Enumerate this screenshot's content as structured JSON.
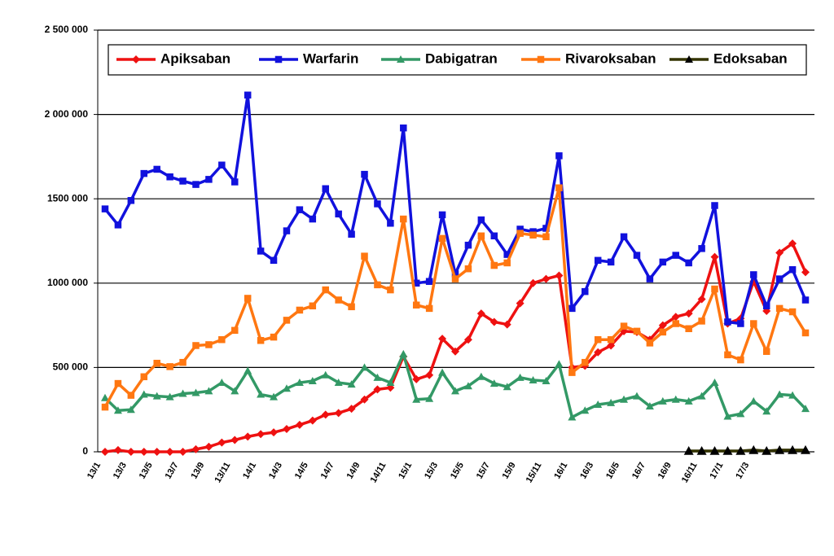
{
  "chart_data": {
    "type": "line",
    "categories": [
      "13/1",
      null,
      "13/3",
      null,
      "13/5",
      null,
      "13/7",
      null,
      "13/9",
      null,
      "13/11",
      null,
      "14/1",
      null,
      "14/3",
      null,
      "14/5",
      null,
      "14/7",
      null,
      "14/9",
      null,
      "14/11",
      null,
      "15/1",
      null,
      "15/3",
      null,
      "15/5",
      null,
      "15/7",
      null,
      "15/9",
      null,
      "15/11",
      null,
      "16/1",
      null,
      "16/3",
      null,
      "16/5",
      null,
      "16/7",
      null,
      "16/9",
      null,
      "16/11",
      null,
      "17/1",
      null,
      "17/3",
      null,
      null,
      null,
      null
    ],
    "series": [
      {
        "name": "Apiksaban",
        "color": "#ee1111",
        "marker": "diamond",
        "values": [
          0,
          10000,
          0,
          0,
          0,
          0,
          0,
          15000,
          30000,
          55000,
          70000,
          90000,
          105000,
          115000,
          135000,
          160000,
          185000,
          220000,
          230000,
          255000,
          310000,
          370000,
          380000,
          565000,
          430000,
          455000,
          670000,
          595000,
          665000,
          820000,
          770000,
          755000,
          880000,
          1000000,
          1025000,
          1045000,
          500000,
          510000,
          590000,
          630000,
          715000,
          710000,
          665000,
          750000,
          800000,
          820000,
          905000,
          1155000,
          760000,
          790000,
          1010000,
          835000,
          1180000,
          1235000,
          1065000
        ]
      },
      {
        "name": "Warfarin",
        "color": "#1111dd",
        "marker": "square",
        "values": [
          1440000,
          1345000,
          1490000,
          1650000,
          1675000,
          1630000,
          1605000,
          1585000,
          1615000,
          1700000,
          1600000,
          2115000,
          1190000,
          1135000,
          1310000,
          1435000,
          1380000,
          1560000,
          1410000,
          1290000,
          1645000,
          1470000,
          1355000,
          1920000,
          1000000,
          1010000,
          1405000,
          1055000,
          1225000,
          1375000,
          1280000,
          1170000,
          1320000,
          1305000,
          1325000,
          1755000,
          850000,
          950000,
          1135000,
          1125000,
          1275000,
          1165000,
          1025000,
          1125000,
          1165000,
          1120000,
          1205000,
          1460000,
          770000,
          760000,
          1050000,
          865000,
          1025000,
          1080000,
          900000
        ]
      },
      {
        "name": "Dabigatran",
        "color": "#339966",
        "marker": "triangle",
        "values": [
          320000,
          245000,
          250000,
          340000,
          330000,
          325000,
          345000,
          350000,
          360000,
          410000,
          360000,
          480000,
          340000,
          325000,
          375000,
          410000,
          420000,
          455000,
          410000,
          400000,
          500000,
          440000,
          410000,
          580000,
          310000,
          315000,
          470000,
          360000,
          390000,
          445000,
          405000,
          385000,
          440000,
          425000,
          420000,
          520000,
          205000,
          245000,
          280000,
          290000,
          310000,
          330000,
          270000,
          300000,
          310000,
          300000,
          330000,
          410000,
          210000,
          225000,
          300000,
          240000,
          340000,
          335000,
          255000
        ]
      },
      {
        "name": "Rivaroksaban",
        "color": "#ff7711",
        "marker": "square",
        "values": [
          265000,
          405000,
          335000,
          445000,
          525000,
          505000,
          530000,
          630000,
          635000,
          665000,
          720000,
          910000,
          660000,
          680000,
          780000,
          840000,
          865000,
          960000,
          900000,
          860000,
          1160000,
          990000,
          960000,
          1380000,
          870000,
          850000,
          1265000,
          1025000,
          1085000,
          1280000,
          1105000,
          1120000,
          1295000,
          1285000,
          1275000,
          1565000,
          470000,
          530000,
          665000,
          665000,
          745000,
          715000,
          645000,
          710000,
          760000,
          730000,
          775000,
          965000,
          575000,
          545000,
          760000,
          595000,
          850000,
          830000,
          705000
        ]
      },
      {
        "name": "Edoksaban",
        "color": "#000000",
        "marker": "triangle",
        "values": [
          null,
          null,
          null,
          null,
          null,
          null,
          null,
          null,
          null,
          null,
          null,
          null,
          null,
          null,
          null,
          null,
          null,
          null,
          null,
          null,
          null,
          null,
          null,
          null,
          null,
          null,
          null,
          null,
          null,
          null,
          null,
          null,
          null,
          null,
          null,
          null,
          null,
          null,
          null,
          null,
          null,
          null,
          null,
          null,
          null,
          5000,
          5000,
          5000,
          5000,
          5000,
          10000,
          5000,
          10000,
          10000,
          10000
        ]
      }
    ],
    "ylim": [
      0,
      2500000
    ],
    "yticks": [
      0,
      {
        "value": 500000,
        "label": "500 000"
      },
      {
        "value": 1000000,
        "label": "1000 000"
      },
      {
        "value": 1500000,
        "label": "1500 000"
      },
      {
        "value": 2000000,
        "label": "2 000 000"
      },
      {
        "value": 2500000,
        "label": "2 500 000"
      }
    ],
    "grid": true,
    "legend": "top"
  }
}
